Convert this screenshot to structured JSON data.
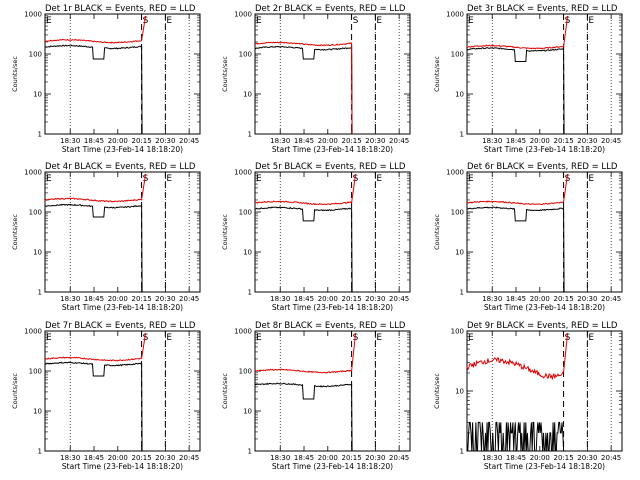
{
  "chart_data": [
    {
      "type": "line",
      "title": "Det 1r  BLACK = Events, RED = LLD",
      "xlabel": "Start Time (23-Feb-14 18:18:20)",
      "ylabel": "Counts/sec",
      "x_ticks": [
        "18:30",
        "18:45",
        "20:00",
        "20:15",
        "20:30",
        "20:45"
      ],
      "y_ticks": [
        "1",
        "10",
        "100",
        "1000"
      ],
      "y_scale": "log",
      "ylim": [
        1,
        1000
      ],
      "markers": {
        "S": "20:15",
        "E": "20:34"
      },
      "series": [
        {
          "name": "Events",
          "color": "#000000",
          "base": 150,
          "dip": 75,
          "end_drop": true
        },
        {
          "name": "LLD",
          "color": "#e00000",
          "base": 210,
          "dip": null,
          "end_drop": false
        }
      ]
    },
    {
      "type": "line",
      "title": "Det 2r  BLACK = Events, RED = LLD",
      "xlabel": "Start Time (23-Feb-14 18:18:20)",
      "ylabel": "Counts/sec",
      "x_ticks": [
        "18:30",
        "18:45",
        "20:00",
        "20:15",
        "20:30",
        "20:45"
      ],
      "y_ticks": [
        "1",
        "10",
        "100",
        "1000"
      ],
      "y_scale": "log",
      "ylim": [
        1,
        1000
      ],
      "markers": {
        "S": "20:15",
        "E": "20:34"
      },
      "series": [
        {
          "name": "Events",
          "color": "#000000",
          "base": 140,
          "dip": 75,
          "end_drop": true
        },
        {
          "name": "LLD",
          "color": "#e00000",
          "base": 180,
          "dip": null,
          "end_drop": true
        }
      ]
    },
    {
      "type": "line",
      "title": "Det 3r  BLACK = Events, RED = LLD",
      "xlabel": "Start Time (23-Feb-14 18:18:20)",
      "ylabel": "Counts/sec",
      "x_ticks": [
        "18:30",
        "18:45",
        "20:00",
        "20:15",
        "20:30",
        "20:45"
      ],
      "y_ticks": [
        "1",
        "10",
        "100",
        "1000"
      ],
      "y_scale": "log",
      "ylim": [
        1,
        1000
      ],
      "markers": {
        "S": "20:15",
        "E": "20:34"
      },
      "series": [
        {
          "name": "Events",
          "color": "#000000",
          "base": 130,
          "dip": 65,
          "end_drop": true
        },
        {
          "name": "LLD",
          "color": "#e00000",
          "base": 150,
          "dip": null,
          "end_drop": false
        }
      ]
    },
    {
      "type": "line",
      "title": "Det 4r  BLACK = Events, RED = LLD",
      "xlabel": "Start Time (23-Feb-14 18:18:20)",
      "ylabel": "Counts/sec",
      "x_ticks": [
        "18:30",
        "18:45",
        "20:00",
        "20:15",
        "20:30",
        "20:45"
      ],
      "y_ticks": [
        "1",
        "10",
        "100",
        "1000"
      ],
      "y_scale": "log",
      "ylim": [
        1,
        1000
      ],
      "markers": {
        "S": "20:15",
        "E": "20:34"
      },
      "series": [
        {
          "name": "Events",
          "color": "#000000",
          "base": 140,
          "dip": 75,
          "end_drop": true
        },
        {
          "name": "LLD",
          "color": "#e00000",
          "base": 200,
          "dip": null,
          "end_drop": false
        }
      ]
    },
    {
      "type": "line",
      "title": "Det 5r  BLACK = Events, RED = LLD",
      "xlabel": "Start Time (23-Feb-14 18:18:20)",
      "ylabel": "Counts/sec",
      "x_ticks": [
        "18:30",
        "18:45",
        "20:00",
        "20:15",
        "20:30",
        "20:45"
      ],
      "y_ticks": [
        "1",
        "10",
        "100",
        "1000"
      ],
      "y_scale": "log",
      "ylim": [
        1,
        1000
      ],
      "markers": {
        "S": "20:15",
        "E": "20:34"
      },
      "series": [
        {
          "name": "Events",
          "color": "#000000",
          "base": 120,
          "dip": 60,
          "end_drop": true
        },
        {
          "name": "LLD",
          "color": "#e00000",
          "base": 170,
          "dip": null,
          "end_drop": false
        }
      ]
    },
    {
      "type": "line",
      "title": "Det 6r  BLACK = Events, RED = LLD",
      "xlabel": "Start Time (23-Feb-14 18:18:20)",
      "ylabel": "Counts/sec",
      "x_ticks": [
        "18:30",
        "18:45",
        "20:00",
        "20:15",
        "20:30",
        "20:45"
      ],
      "y_ticks": [
        "1",
        "10",
        "100",
        "1000"
      ],
      "y_scale": "log",
      "ylim": [
        1,
        1000
      ],
      "markers": {
        "S": "20:15",
        "E": "20:34"
      },
      "series": [
        {
          "name": "Events",
          "color": "#000000",
          "base": 120,
          "dip": 60,
          "end_drop": true
        },
        {
          "name": "LLD",
          "color": "#e00000",
          "base": 170,
          "dip": null,
          "end_drop": false
        }
      ]
    },
    {
      "type": "line",
      "title": "Det 7r  BLACK = Events, RED = LLD",
      "xlabel": "Start Time (23-Feb-14 18:18:20)",
      "ylabel": "Counts/sec",
      "x_ticks": [
        "18:30",
        "18:45",
        "20:00",
        "20:15",
        "20:30",
        "20:45"
      ],
      "y_ticks": [
        "1",
        "10",
        "100",
        "1000"
      ],
      "y_scale": "log",
      "ylim": [
        1,
        1000
      ],
      "markers": {
        "S": "20:15",
        "E": "20:34"
      },
      "series": [
        {
          "name": "Events",
          "color": "#000000",
          "base": 150,
          "dip": 75,
          "end_drop": true
        },
        {
          "name": "LLD",
          "color": "#e00000",
          "base": 200,
          "dip": null,
          "end_drop": false
        }
      ]
    },
    {
      "type": "line",
      "title": "Det 8r  BLACK = Events, RED = LLD",
      "xlabel": "Start Time (23-Feb-14 18:18:20)",
      "ylabel": "Counts/sec",
      "x_ticks": [
        "18:30",
        "18:45",
        "20:00",
        "20:15",
        "20:30",
        "20:45"
      ],
      "y_ticks": [
        "1",
        "10",
        "100",
        "1000"
      ],
      "y_scale": "log",
      "ylim": [
        1,
        1000
      ],
      "markers": {
        "S": "20:15",
        "E": "20:34"
      },
      "series": [
        {
          "name": "Events",
          "color": "#000000",
          "base": 45,
          "dip": 20,
          "end_drop": true
        },
        {
          "name": "LLD",
          "color": "#e00000",
          "base": 100,
          "dip": null,
          "end_drop": false
        }
      ]
    },
    {
      "type": "line",
      "title": "Det 9r  BLACK = Events, RED = LLD",
      "xlabel": "Start Time (23-Feb-14 18:18:20)",
      "ylabel": "Counts/sec",
      "x_ticks": [
        "18:30",
        "18:45",
        "20:00",
        "20:15",
        "20:30",
        "20:45"
      ],
      "y_ticks": [
        "1",
        "10",
        "100"
      ],
      "y_scale": "log",
      "ylim": [
        1,
        100
      ],
      "markers": {
        "S": "20:15",
        "E": "20:34"
      },
      "series": [
        {
          "name": "Events",
          "color": "#000000",
          "base": 2,
          "dip": null,
          "end_drop": false,
          "noisy": true
        },
        {
          "name": "LLD",
          "color": "#e00000",
          "base": 25,
          "dip": null,
          "end_drop": false
        }
      ]
    }
  ]
}
